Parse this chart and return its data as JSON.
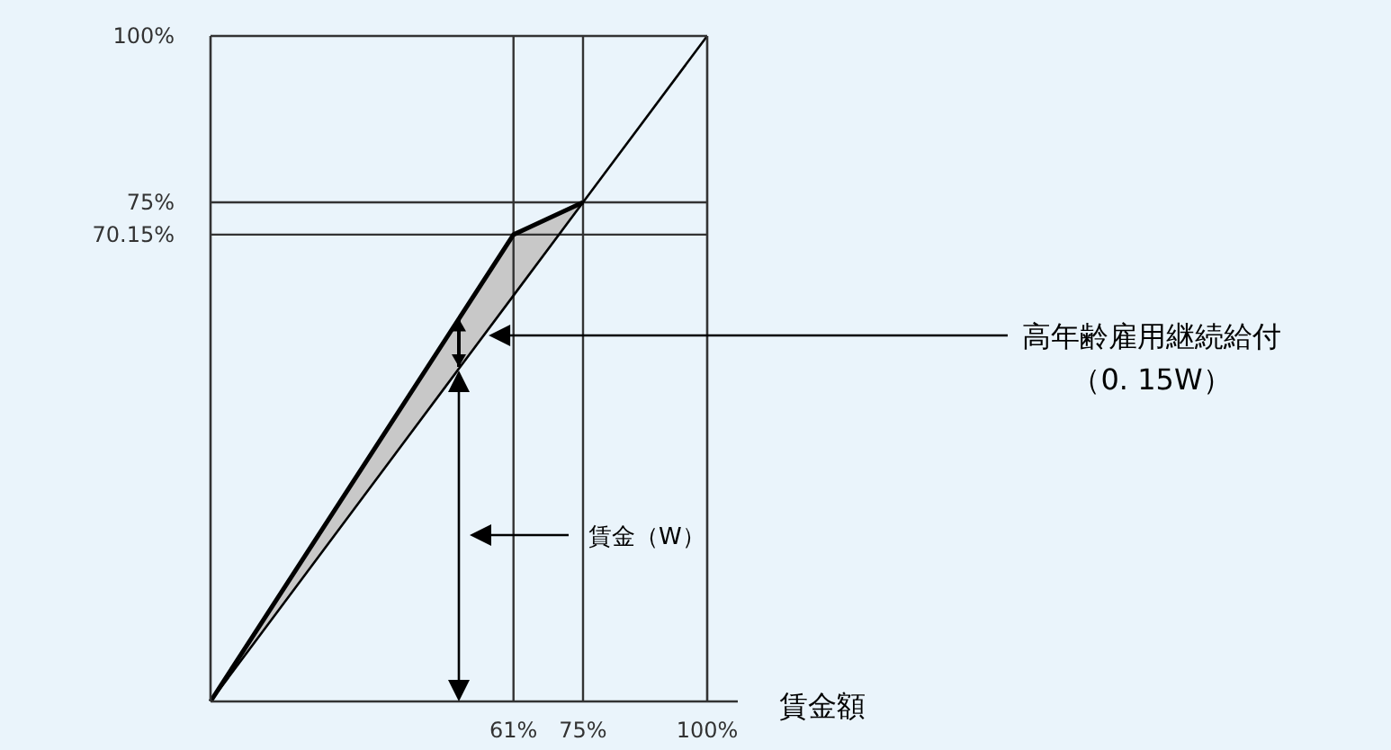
{
  "chart_data": {
    "type": "line",
    "xlabel": "賃金額",
    "x": [
      0,
      61,
      75,
      100
    ],
    "xlim": [
      0,
      100
    ],
    "xticks": [
      {
        "value": 61,
        "label": "61%"
      },
      {
        "value": 75,
        "label": "75%"
      },
      {
        "value": 100,
        "label": "100%"
      }
    ],
    "ylim": [
      0,
      100
    ],
    "yticks": [
      {
        "value": 70.15,
        "label": "70.15%"
      },
      {
        "value": 75,
        "label": "75%"
      },
      {
        "value": 100,
        "label": "100%"
      }
    ],
    "series": [
      {
        "color": "#000000",
        "values": [
          0,
          61,
          75,
          100
        ]
      },
      {
        "color": "#000000",
        "values": [
          0,
          70.15,
          75,
          null
        ],
        "lower": [
          0,
          61,
          75,
          null
        ],
        "upper": [
          0,
          70.15,
          75,
          null
        ]
      }
    ],
    "ref_lines": [
      {
        "axis": "y",
        "value": 75,
        "color": "#333333"
      },
      {
        "axis": "y",
        "value": 70.15,
        "color": "#333333"
      },
      {
        "axis": "x",
        "value": 61,
        "color": "#333333"
      },
      {
        "axis": "x",
        "value": 75,
        "color": "#333333"
      }
    ],
    "annotations": [
      "高年齢雇用継続給付",
      "（0. 15W）",
      "賃金（W）"
    ],
    "grid": false,
    "marker": "none",
    "line_style": "solid"
  }
}
